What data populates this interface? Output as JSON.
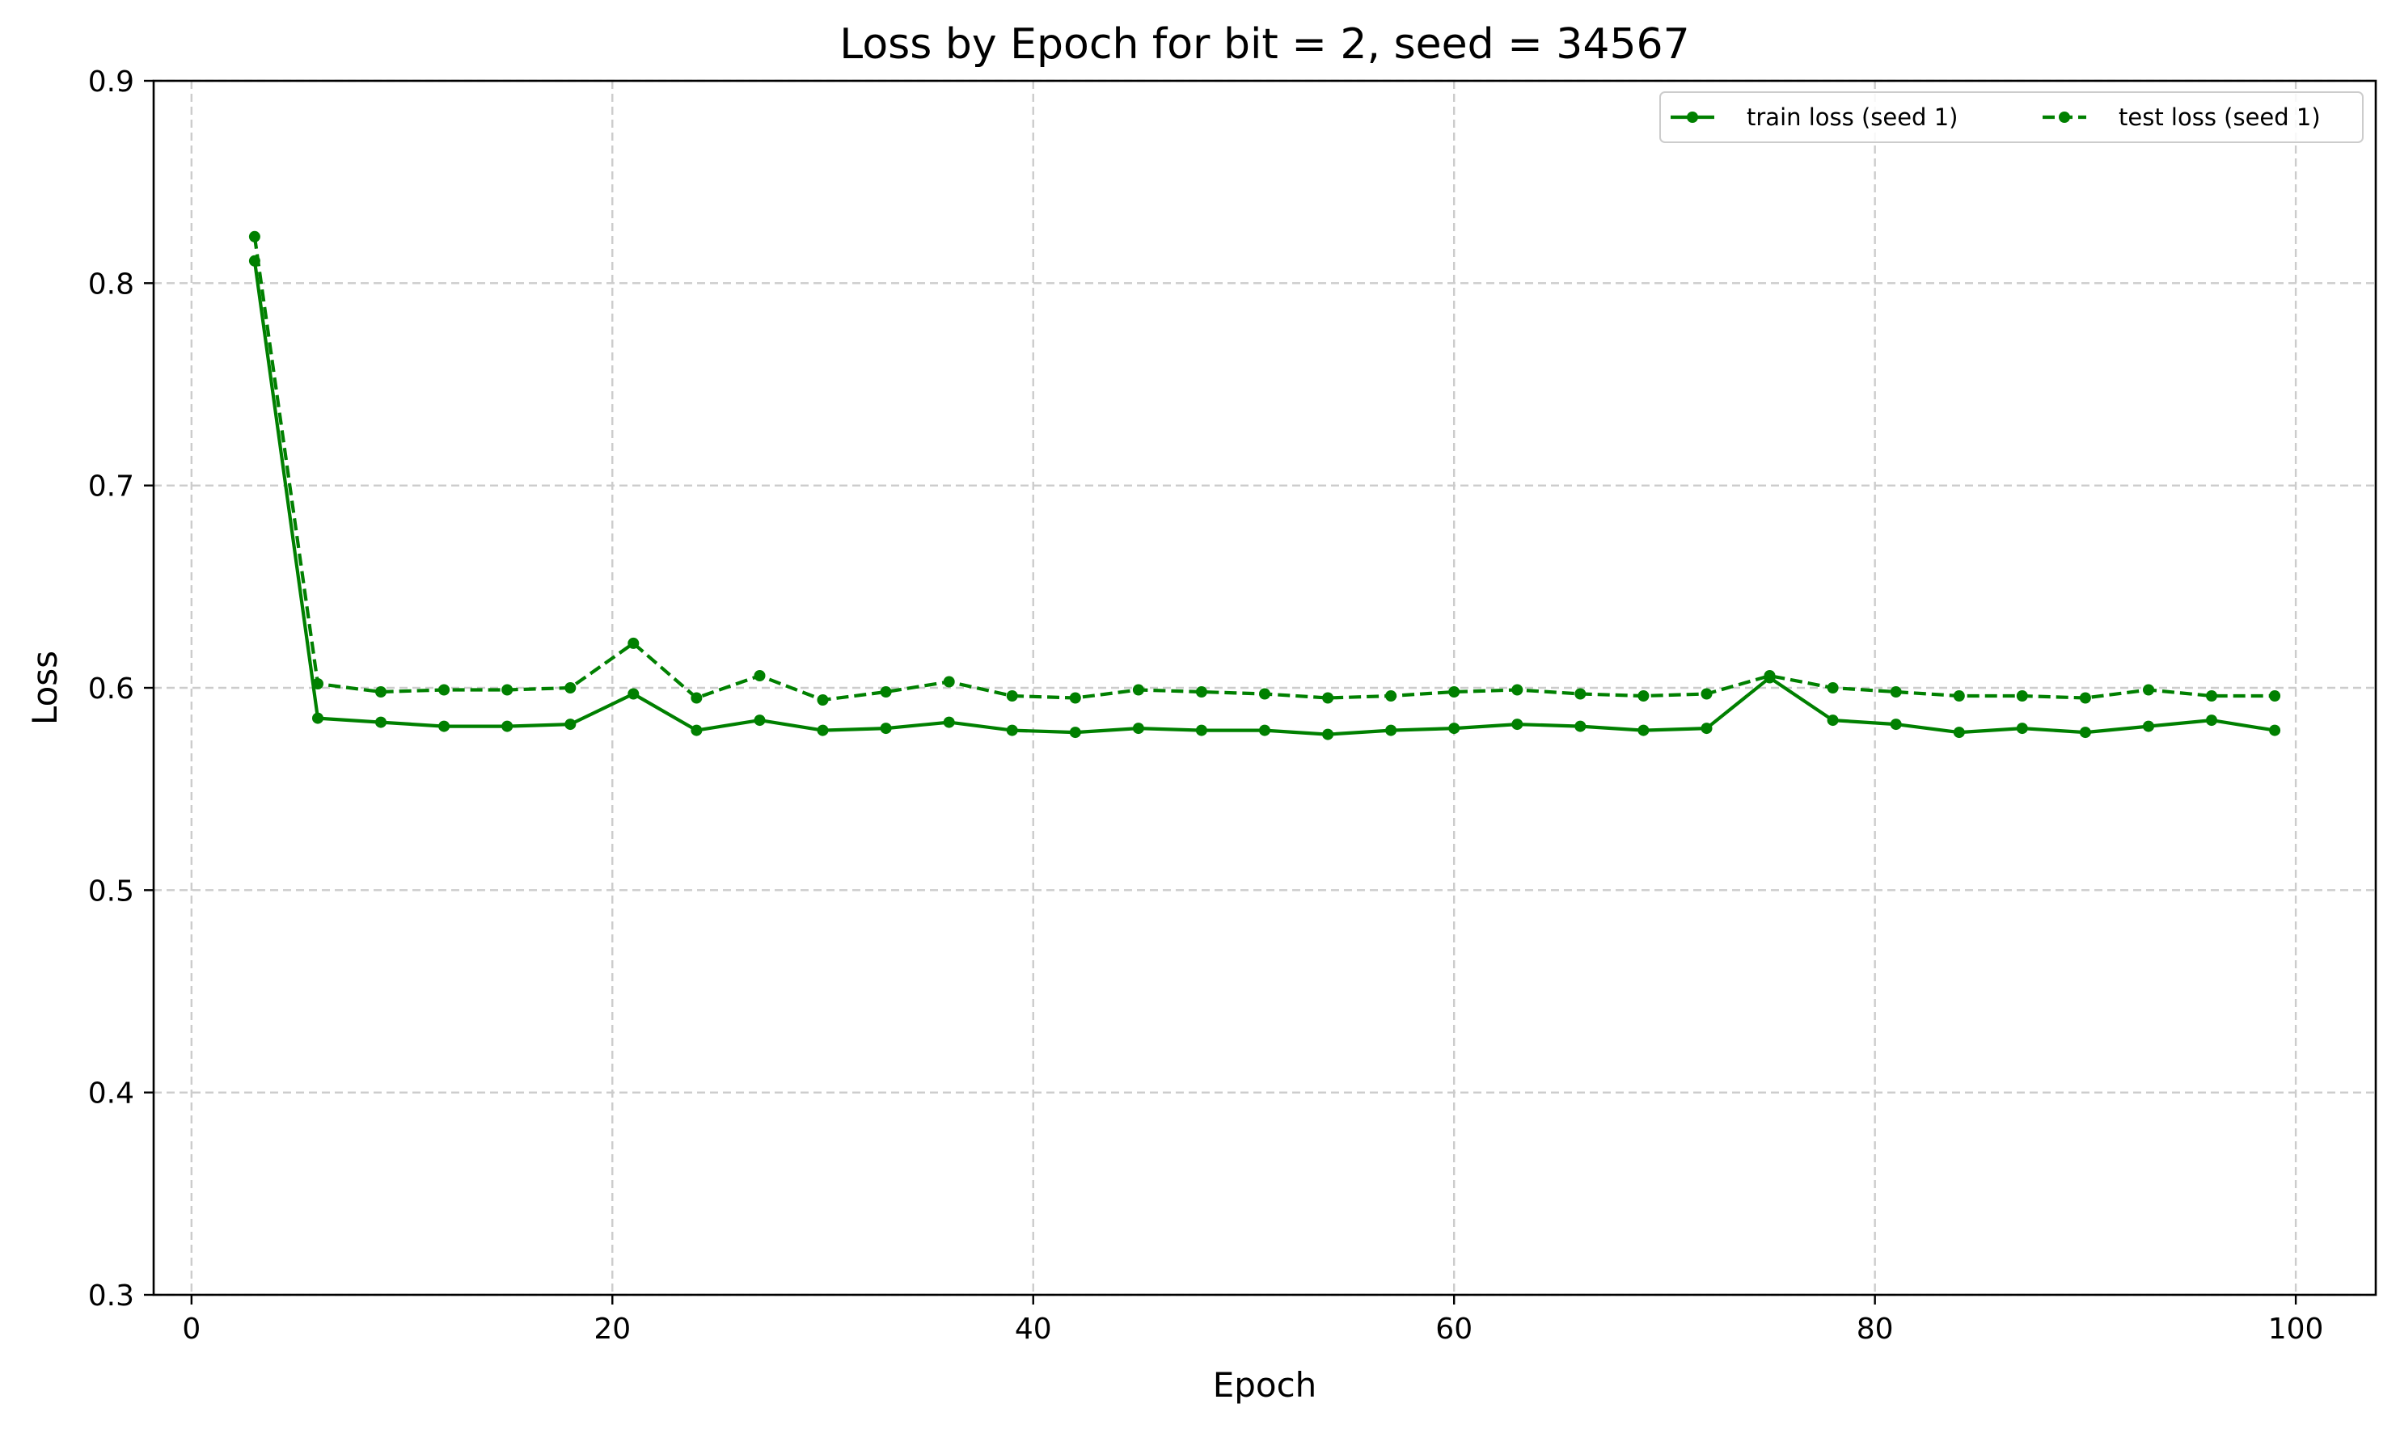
{
  "chart_data": {
    "type": "line",
    "title": "Loss by Epoch for bit = 2, seed = 34567",
    "xlabel": "Epoch",
    "ylabel": "Loss",
    "xlim": [
      -1.8,
      103.8
    ],
    "ylim": [
      0.3,
      0.9
    ],
    "xticks": [
      0,
      20,
      40,
      60,
      80,
      100
    ],
    "yticks": [
      0.3,
      0.4,
      0.5,
      0.6,
      0.7,
      0.8,
      0.9
    ],
    "xtick_labels": [
      "0",
      "20",
      "40",
      "60",
      "80",
      "100"
    ],
    "ytick_labels": [
      "0.3",
      "0.4",
      "0.5",
      "0.6",
      "0.7",
      "0.8",
      "0.9"
    ],
    "grid": true,
    "legend_position": "top-right",
    "x": [
      3,
      6,
      9,
      12,
      15,
      18,
      21,
      24,
      27,
      30,
      33,
      36,
      39,
      42,
      45,
      48,
      51,
      54,
      57,
      60,
      63,
      66,
      69,
      72,
      75,
      78,
      81,
      84,
      87,
      90,
      93,
      96,
      99
    ],
    "series": [
      {
        "name": "train loss (seed 1)",
        "color": "#008000",
        "line_style": "solid",
        "marker": "circle",
        "values": [
          0.811,
          0.585,
          0.583,
          0.581,
          0.581,
          0.582,
          0.597,
          0.579,
          0.584,
          0.579,
          0.58,
          0.583,
          0.579,
          0.578,
          0.58,
          0.579,
          0.579,
          0.577,
          0.579,
          0.58,
          0.582,
          0.581,
          0.579,
          0.58,
          0.605,
          0.584,
          0.582,
          0.578,
          0.58,
          0.578,
          0.581,
          0.584,
          0.579
        ]
      },
      {
        "name": "test loss (seed 1)",
        "color": "#008000",
        "line_style": "dashed",
        "marker": "circle",
        "values": [
          0.823,
          0.602,
          0.598,
          0.599,
          0.599,
          0.6,
          0.622,
          0.595,
          0.606,
          0.594,
          0.598,
          0.603,
          0.596,
          0.595,
          0.599,
          0.598,
          0.597,
          0.595,
          0.596,
          0.598,
          0.599,
          0.597,
          0.596,
          0.597,
          0.606,
          0.6,
          0.598,
          0.596,
          0.596,
          0.595,
          0.599,
          0.596,
          0.596
        ]
      }
    ]
  }
}
